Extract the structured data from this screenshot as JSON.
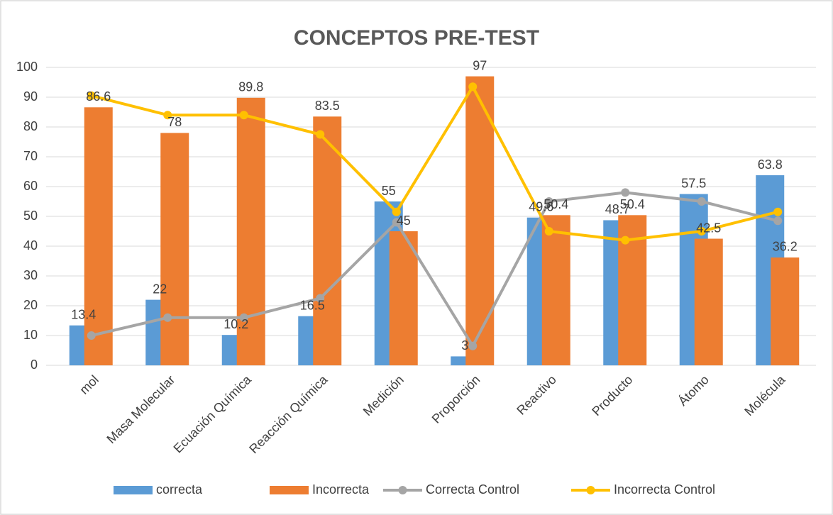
{
  "chart_data": {
    "type": "bar",
    "title": "CONCEPTOS PRE-TEST",
    "categories": [
      "mol",
      "Masa Molecular",
      "Ecuación Química",
      "Reacción Química",
      "Medición",
      "Proporción",
      "Reactivo",
      "Producto",
      "Átomo",
      "Molécula"
    ],
    "series": [
      {
        "name": "correcta",
        "type": "bar",
        "color": "#5b9bd5",
        "values": [
          13.4,
          22,
          10.2,
          16.5,
          55,
          3,
          49.6,
          48.7,
          57.5,
          63.8
        ]
      },
      {
        "name": "Incorrecta",
        "type": "bar",
        "color": "#ed7d31",
        "values": [
          86.6,
          78,
          89.8,
          83.5,
          45,
          97,
          50.4,
          50.4,
          42.5,
          36.2
        ]
      },
      {
        "name": "Correcta Control",
        "type": "line",
        "color": "#a5a5a5",
        "values": [
          10,
          16,
          16,
          22.5,
          48,
          6.5,
          55,
          58,
          55,
          48.5
        ]
      },
      {
        "name": "Incorrecta Control",
        "type": "line",
        "color": "#ffc000",
        "values": [
          90.5,
          84,
          84,
          77.5,
          51.5,
          93.5,
          45,
          42,
          45,
          51.5
        ]
      }
    ],
    "ylim": [
      0,
      100
    ],
    "yticks": [
      0,
      10,
      20,
      30,
      40,
      50,
      60,
      70,
      80,
      90,
      100
    ],
    "grid": true,
    "legend": "bottom"
  }
}
